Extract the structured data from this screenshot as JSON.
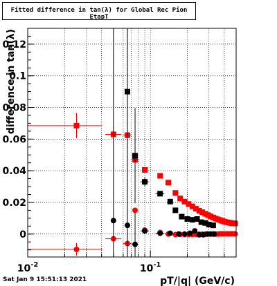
{
  "chart_data": {
    "type": "scatter",
    "title": "Fitted difference in tan(λ) for Global Rec Pion EtapT",
    "xlabel": "pT/|q| (GeV/c)",
    "ylabel": "difference in tan(λ)",
    "x_scale": "log",
    "xlim": [
      0.01,
      0.5
    ],
    "ylim": [
      -0.0145,
      0.13
    ],
    "grid": true,
    "x_ticks": [
      {
        "value": 0.01,
        "label": "10",
        "exp": "-2"
      },
      {
        "value": 0.1,
        "label": "10",
        "exp": "-1"
      }
    ],
    "y_ticks": [
      {
        "value": 0,
        "label": "0"
      },
      {
        "value": 0.02,
        "label": "0.02"
      },
      {
        "value": 0.04,
        "label": "0.04"
      },
      {
        "value": 0.06,
        "label": "0.06"
      },
      {
        "value": 0.08,
        "label": "0.08"
      },
      {
        "value": 0.1,
        "label": "0.1"
      },
      {
        "value": 0.12,
        "label": "0.12"
      }
    ],
    "series": [
      {
        "marker": "square",
        "color": "#ff0000",
        "points": [
          {
            "x": 0.025,
            "y": 0.0685,
            "xlo": 0.01,
            "xhi": 0.0405,
            "err": 0.008
          },
          {
            "x": 0.05,
            "y": 0.063,
            "xlo": 0.043,
            "xhi": 0.058
          },
          {
            "x": 0.065,
            "y": 0.0625,
            "xlo": 0.06,
            "xhi": 0.07
          },
          {
            "x": 0.075,
            "y": 0.047,
            "xlo": 0.07,
            "xhi": 0.08,
            "err": 0.002
          },
          {
            "x": 0.09,
            "y": 0.0405,
            "xlo": 0.085,
            "xhi": 0.095
          },
          {
            "x": 0.12,
            "y": 0.0368
          },
          {
            "x": 0.14,
            "y": 0.0325
          },
          {
            "x": 0.16,
            "y": 0.026
          },
          {
            "x": 0.175,
            "y": 0.0225
          },
          {
            "x": 0.19,
            "y": 0.0205
          },
          {
            "x": 0.205,
            "y": 0.019
          },
          {
            "x": 0.22,
            "y": 0.0175
          },
          {
            "x": 0.235,
            "y": 0.016
          },
          {
            "x": 0.25,
            "y": 0.0148
          },
          {
            "x": 0.265,
            "y": 0.0138
          },
          {
            "x": 0.28,
            "y": 0.0128
          },
          {
            "x": 0.295,
            "y": 0.012
          },
          {
            "x": 0.31,
            "y": 0.0112
          },
          {
            "x": 0.325,
            "y": 0.0105
          },
          {
            "x": 0.34,
            "y": 0.0098
          },
          {
            "x": 0.355,
            "y": 0.0093
          },
          {
            "x": 0.37,
            "y": 0.0088
          },
          {
            "x": 0.385,
            "y": 0.0083
          },
          {
            "x": 0.4,
            "y": 0.0079
          },
          {
            "x": 0.415,
            "y": 0.0076
          },
          {
            "x": 0.43,
            "y": 0.0073
          },
          {
            "x": 0.445,
            "y": 0.0071
          },
          {
            "x": 0.46,
            "y": 0.0069
          },
          {
            "x": 0.475,
            "y": 0.0068
          },
          {
            "x": 0.49,
            "y": 0.0067
          }
        ]
      },
      {
        "marker": "circle",
        "color": "#ff0000",
        "points": [
          {
            "x": 0.025,
            "y": -0.0097,
            "xlo": 0.01,
            "xhi": 0.0405,
            "err": 0.004
          },
          {
            "x": 0.05,
            "y": -0.003,
            "xlo": 0.043,
            "xhi": 0.058
          },
          {
            "x": 0.065,
            "y": -0.006,
            "xlo": 0.06,
            "xhi": 0.07
          },
          {
            "x": 0.075,
            "y": 0.015
          },
          {
            "x": 0.09,
            "y": 0.0025
          },
          {
            "x": 0.12,
            "y": 0.001
          },
          {
            "x": 0.14,
            "y": 0.0
          },
          {
            "x": 0.16,
            "y": -0.0003
          },
          {
            "x": 0.175,
            "y": -0.0002
          },
          {
            "x": 0.19,
            "y": -0.0003
          },
          {
            "x": 0.205,
            "y": -0.0003
          },
          {
            "x": 0.22,
            "y": -0.0002
          },
          {
            "x": 0.235,
            "y": -0.0002
          },
          {
            "x": 0.25,
            "y": -0.0001
          },
          {
            "x": 0.265,
            "y": -0.0001
          },
          {
            "x": 0.28,
            "y": -0.0001
          },
          {
            "x": 0.295,
            "y": 0.0
          },
          {
            "x": 0.31,
            "y": 0.0
          },
          {
            "x": 0.325,
            "y": 0.0
          },
          {
            "x": 0.34,
            "y": 0.0
          },
          {
            "x": 0.355,
            "y": 0.0
          },
          {
            "x": 0.37,
            "y": 0.0001
          },
          {
            "x": 0.385,
            "y": 0.0001
          },
          {
            "x": 0.4,
            "y": 0.0001
          },
          {
            "x": 0.415,
            "y": 0.0001
          },
          {
            "x": 0.43,
            "y": 0.0001
          },
          {
            "x": 0.445,
            "y": 0.0001
          },
          {
            "x": 0.46,
            "y": 0.0001
          },
          {
            "x": 0.475,
            "y": 0.0001
          },
          {
            "x": 0.49,
            "y": 0.0001
          }
        ]
      },
      {
        "marker": "square",
        "color": "#000000",
        "points": [
          {
            "x": 0.065,
            "y": 0.09,
            "err": 0.2
          },
          {
            "x": 0.075,
            "y": 0.0495,
            "err": 0.03
          },
          {
            "x": 0.09,
            "y": 0.033,
            "xlo": 0.083,
            "xhi": 0.097,
            "err": 0.003
          },
          {
            "x": 0.12,
            "y": 0.0255,
            "xlo": 0.11,
            "xhi": 0.13
          },
          {
            "x": 0.145,
            "y": 0.0205,
            "xlo": 0.138,
            "xhi": 0.152
          },
          {
            "x": 0.16,
            "y": 0.015
          },
          {
            "x": 0.18,
            "y": 0.011
          },
          {
            "x": 0.2,
            "y": 0.0095
          },
          {
            "x": 0.22,
            "y": 0.009
          },
          {
            "x": 0.24,
            "y": 0.0095
          },
          {
            "x": 0.26,
            "y": 0.0075
          },
          {
            "x": 0.28,
            "y": 0.007
          },
          {
            "x": 0.3,
            "y": 0.006
          },
          {
            "x": 0.325,
            "y": 0.0055
          }
        ]
      },
      {
        "marker": "circle",
        "color": "#000000",
        "points": [
          {
            "x": 0.05,
            "y": 0.0085,
            "err": 0.2
          },
          {
            "x": 0.065,
            "y": 0.0055,
            "err": 0.2
          },
          {
            "x": 0.075,
            "y": -0.0065,
            "err": 0.02
          },
          {
            "x": 0.09,
            "y": 0.002,
            "xlo": 0.083,
            "xhi": 0.097
          },
          {
            "x": 0.12,
            "y": 0.0005,
            "xlo": 0.11,
            "xhi": 0.13
          },
          {
            "x": 0.145,
            "y": 0.0005
          },
          {
            "x": 0.17,
            "y": 0.0
          },
          {
            "x": 0.19,
            "y": 0.0
          },
          {
            "x": 0.21,
            "y": 0.0005
          },
          {
            "x": 0.23,
            "y": 0.002
          },
          {
            "x": 0.25,
            "y": -0.0005
          },
          {
            "x": 0.27,
            "y": -0.0005
          },
          {
            "x": 0.29,
            "y": 0.0
          },
          {
            "x": 0.31,
            "y": 0.0
          },
          {
            "x": 0.33,
            "y": 0.0
          }
        ]
      }
    ]
  },
  "footer": {
    "date": "Sat Jan  9 15:51:13 2021"
  }
}
